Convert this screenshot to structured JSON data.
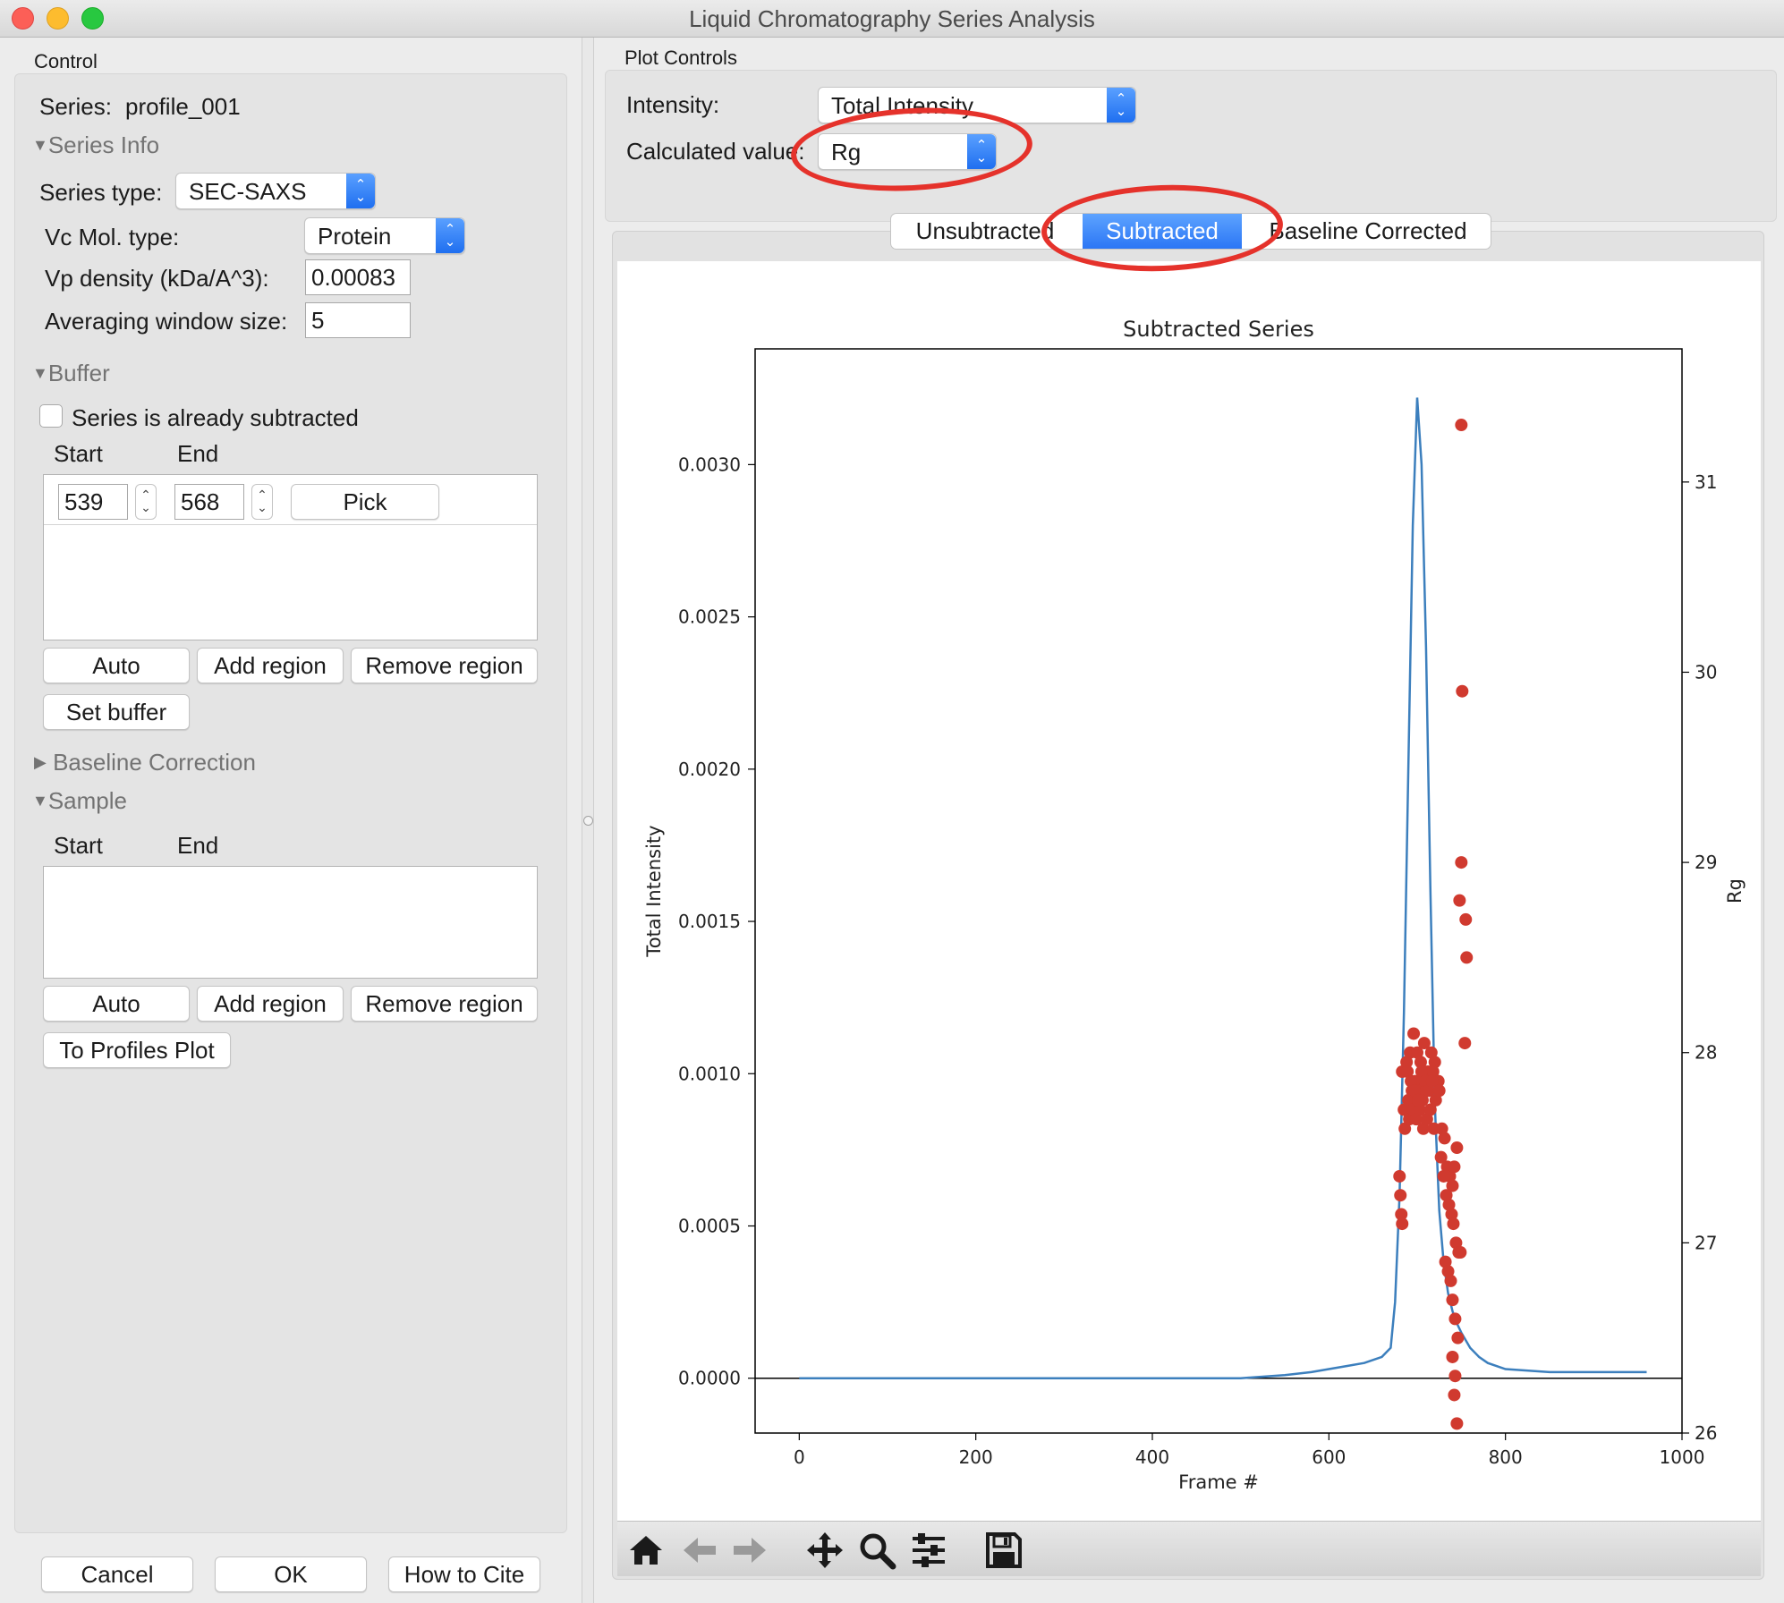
{
  "window": {
    "title": "Liquid Chromatography Series Analysis"
  },
  "control": {
    "header": "Control",
    "series_label": "Series:",
    "series_name": "profile_001",
    "series_info": {
      "title": "Series Info",
      "series_type_label": "Series type:",
      "series_type_value": "SEC-SAXS",
      "vc_mol_type_label": "Vc Mol. type:",
      "vc_mol_type_value": "Protein",
      "vp_density_label": "Vp density (kDa/A^3):",
      "vp_density_value": "0.00083",
      "averaging_label": "Averaging window size:",
      "averaging_value": "5"
    },
    "buffer": {
      "title": "Buffer",
      "already_subtracted_label": "Series is already subtracted",
      "start_label": "Start",
      "end_label": "End",
      "region_start": "539",
      "region_end": "568",
      "pick_label": "Pick",
      "auto_label": "Auto",
      "add_region_label": "Add region",
      "remove_region_label": "Remove region",
      "set_buffer_label": "Set buffer"
    },
    "baseline": {
      "title": "Baseline Correction"
    },
    "sample": {
      "title": "Sample",
      "start_label": "Start",
      "end_label": "End",
      "auto_label": "Auto",
      "add_region_label": "Add region",
      "remove_region_label": "Remove region",
      "to_profiles_label": "To Profiles Plot"
    },
    "footer": {
      "cancel": "Cancel",
      "ok": "OK",
      "cite": "How to Cite"
    }
  },
  "plot_controls": {
    "header": "Plot Controls",
    "intensity_label": "Intensity:",
    "intensity_value": "Total Intensity",
    "calc_label": "Calculated value:",
    "calc_value": "Rg"
  },
  "tabs": [
    {
      "label": "Unsubtracted",
      "active": false
    },
    {
      "label": "Subtracted",
      "active": true
    },
    {
      "label": "Baseline Corrected",
      "active": false
    }
  ],
  "colors": {
    "line": "#3c7fbd",
    "points": "#d03a2f",
    "highlight": "#e5322b",
    "tab_active": "#2f7cf6"
  },
  "toolbar": [
    "home-icon",
    "back-arrow-icon",
    "forward-arrow-icon",
    "pan-icon",
    "zoom-icon",
    "configure-icon",
    "save-icon"
  ],
  "chart_data": {
    "type": "line",
    "title": "Subtracted Series",
    "xlabel": "Frame #",
    "ylabel": "Total Intensity",
    "y2label": "Rg",
    "xlim": [
      -50,
      1000
    ],
    "ylim": [
      -0.00018,
      0.00338
    ],
    "y2lim": [
      26.0,
      31.7
    ],
    "xticks": [
      "0",
      "200",
      "400",
      "600",
      "800",
      "1000"
    ],
    "yticks": [
      "0.0000",
      "0.0005",
      "0.0010",
      "0.0015",
      "0.0020",
      "0.0025",
      "0.0030"
    ],
    "y2ticks": [
      "26",
      "27",
      "28",
      "29",
      "30",
      "31"
    ],
    "series": [
      {
        "kind": "line",
        "axis": "left",
        "x": [
          0,
          50,
          100,
          150,
          200,
          250,
          300,
          350,
          400,
          450,
          500,
          550,
          580,
          600,
          620,
          640,
          660,
          670,
          675,
          680,
          685,
          690,
          695,
          700,
          705,
          710,
          715,
          720,
          725,
          730,
          735,
          740,
          745,
          750,
          760,
          770,
          780,
          800,
          850,
          900,
          960
        ],
        "y": [
          0.0,
          0.0,
          0.0,
          0.0,
          0.0,
          0.0,
          0.0,
          0.0,
          0.0,
          0.0,
          0.0,
          1e-05,
          2e-05,
          3e-05,
          4e-05,
          5e-05,
          7e-05,
          0.0001,
          0.00025,
          0.0006,
          0.0012,
          0.002,
          0.0028,
          0.00322,
          0.003,
          0.0024,
          0.0016,
          0.0009,
          0.00055,
          0.00038,
          0.00028,
          0.00022,
          0.00018,
          0.00015,
          0.0001,
          7e-05,
          5e-05,
          3e-05,
          2e-05,
          2e-05,
          2e-05
        ]
      },
      {
        "kind": "scatter",
        "axis": "right",
        "x": [
          750,
          751,
          750,
          748,
          755,
          756,
          754,
          683,
          688,
          692,
          696,
          700,
          704,
          708,
          712,
          716,
          720,
          724,
          685,
          690,
          694,
          698,
          702,
          706,
          710,
          714,
          718,
          722,
          686,
          691,
          695,
          699,
          703,
          707,
          711,
          715,
          719,
          689,
          693,
          697,
          701,
          705,
          709,
          713,
          717,
          721,
          725,
          728,
          731,
          734,
          737,
          740,
          742,
          745,
          727,
          730,
          733,
          736,
          739,
          741,
          744,
          747,
          732,
          735,
          738,
          740,
          743,
          746,
          749,
          680,
          681,
          682,
          683,
          740,
          743,
          745,
          742
        ],
        "y": [
          31.3,
          29.9,
          29.0,
          28.8,
          28.7,
          28.5,
          28.05,
          27.9,
          27.95,
          28.0,
          28.1,
          28.0,
          27.95,
          28.05,
          27.9,
          28.0,
          27.95,
          27.85,
          27.7,
          27.75,
          27.8,
          27.85,
          27.8,
          27.75,
          27.8,
          27.85,
          27.9,
          27.85,
          27.6,
          27.65,
          27.7,
          27.65,
          27.7,
          27.6,
          27.65,
          27.7,
          27.6,
          27.9,
          27.85,
          27.8,
          27.75,
          27.9,
          27.85,
          27.8,
          27.85,
          27.75,
          27.8,
          27.6,
          27.55,
          27.4,
          27.35,
          27.3,
          27.4,
          27.5,
          27.45,
          27.35,
          27.25,
          27.2,
          27.15,
          27.1,
          27.0,
          26.95,
          26.9,
          26.85,
          26.8,
          26.7,
          26.6,
          26.5,
          26.95,
          27.35,
          27.25,
          27.15,
          27.1,
          26.4,
          26.3,
          26.05,
          26.2
        ]
      }
    ]
  }
}
